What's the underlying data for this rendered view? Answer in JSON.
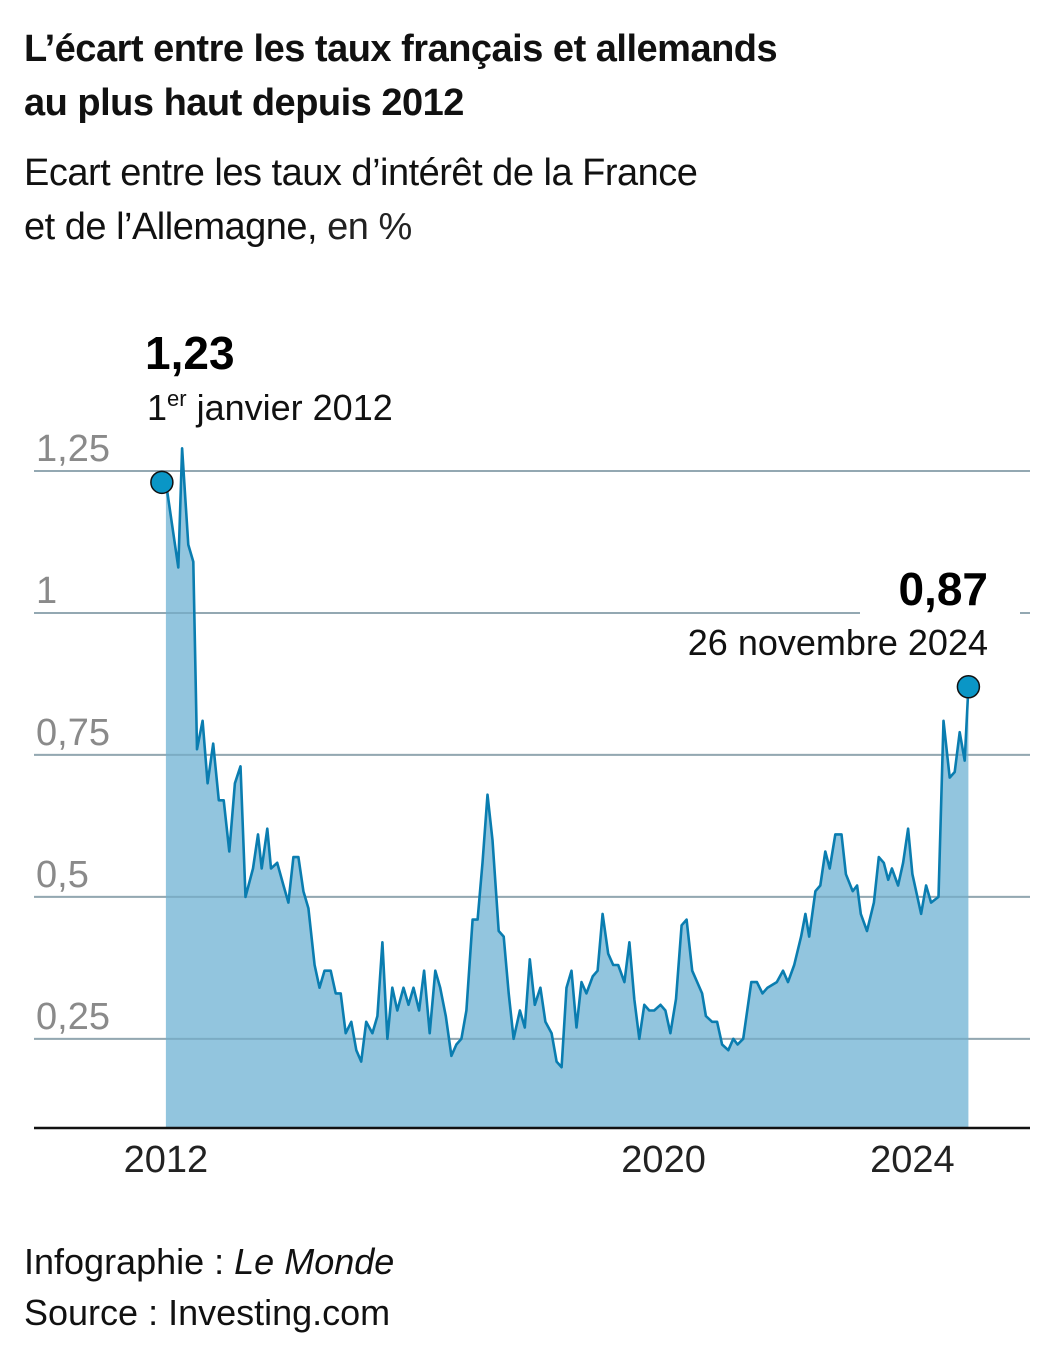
{
  "header": {
    "title_line1": "L’écart entre les taux français et allemands",
    "title_line2": "au plus haut depuis 2012",
    "subtitle_line1": "Ecart entre les taux d’intérêt de la France",
    "subtitle_line2_strong": "et de l’Allemagne,",
    "subtitle_unit": " en %"
  },
  "footer": {
    "credit_label": "Infographie : ",
    "credit_name": "Le Monde",
    "source": "Source : Investing.com"
  },
  "colors": {
    "area": "#92c5de",
    "line": "#0a7db0",
    "marker": "#0a96c6",
    "grid": "#bdbdbd",
    "axis": "#111111"
  },
  "chart_data": {
    "type": "area",
    "title": "L’écart entre les taux français et allemands au plus haut depuis 2012",
    "ylabel": "en %",
    "xlabel": "",
    "xlim": [
      2009.88,
      2025.89
    ],
    "ylim": [
      0.093,
      1.3
    ],
    "grid": true,
    "yticks": [
      {
        "v": 1.25,
        "label": "1,25"
      },
      {
        "v": 1,
        "label": "1"
      },
      {
        "v": 0.75,
        "label": "0,75"
      },
      {
        "v": 0.5,
        "label": "0,5"
      },
      {
        "v": 0.25,
        "label": "0,25"
      }
    ],
    "xticks": [
      {
        "v": 2012,
        "label": "2012"
      },
      {
        "v": 2020,
        "label": "2020"
      },
      {
        "v": 2024,
        "label": "2024"
      }
    ],
    "annotations": [
      {
        "x": 2012.0,
        "y": 1.23,
        "value": "1,23",
        "date_sup_base": "1",
        "date_sup": "er",
        "date": " janvier 2012",
        "align": "left"
      },
      {
        "x": 2024.9,
        "y": 0.87,
        "value": "0,87",
        "date": "26 novembre 2024",
        "align": "right"
      }
    ],
    "x": [
      2012.0,
      2012.2,
      2012.26,
      2012.36,
      2012.44,
      2012.5,
      2012.59,
      2012.67,
      2012.76,
      2012.85,
      2012.93,
      2013.02,
      2013.11,
      2013.2,
      2013.28,
      2013.4,
      2013.48,
      2013.54,
      2013.63,
      2013.69,
      2013.79,
      2013.89,
      2013.97,
      2014.05,
      2014.13,
      2014.21,
      2014.29,
      2014.39,
      2014.47,
      2014.55,
      2014.65,
      2014.73,
      2014.81,
      2014.89,
      2014.98,
      2015.06,
      2015.14,
      2015.22,
      2015.32,
      2015.4,
      2015.48,
      2015.56,
      2015.64,
      2015.72,
      2015.82,
      2015.9,
      2015.98,
      2016.07,
      2016.15,
      2016.24,
      2016.33,
      2016.41,
      2016.5,
      2016.59,
      2016.67,
      2016.75,
      2016.83,
      2016.93,
      2017.01,
      2017.09,
      2017.17,
      2017.25,
      2017.35,
      2017.43,
      2017.51,
      2017.59,
      2017.69,
      2017.77,
      2017.85,
      2017.93,
      2018.02,
      2018.1,
      2018.2,
      2018.28,
      2018.36,
      2018.44,
      2018.52,
      2018.6,
      2018.68,
      2018.76,
      2018.86,
      2018.94,
      2019.02,
      2019.11,
      2019.19,
      2019.27,
      2019.37,
      2019.45,
      2019.53,
      2019.61,
      2019.69,
      2019.77,
      2019.85,
      2019.95,
      2020.03,
      2020.11,
      2020.2,
      2020.29,
      2020.37,
      2020.46,
      2020.54,
      2020.62,
      2020.68,
      2020.78,
      2020.86,
      2020.94,
      2021.04,
      2021.12,
      2021.19,
      2021.28,
      2021.41,
      2021.5,
      2021.59,
      2021.67,
      2021.82,
      2021.92,
      2022.0,
      2022.1,
      2022.21,
      2022.28,
      2022.34,
      2022.44,
      2022.52,
      2022.6,
      2022.67,
      2022.76,
      2022.86,
      2022.93,
      2023.04,
      2023.11,
      2023.17,
      2023.27,
      2023.38,
      2023.46,
      2023.54,
      2023.61,
      2023.67,
      2023.77,
      2023.85,
      2023.93,
      2024.0,
      2024.14,
      2024.22,
      2024.3,
      2024.42,
      2024.5,
      2024.6,
      2024.68,
      2024.76,
      2024.84,
      2024.9
    ],
    "values": [
      1.23,
      1.08,
      1.29,
      1.12,
      1.09,
      0.76,
      0.81,
      0.7,
      0.77,
      0.67,
      0.67,
      0.58,
      0.7,
      0.73,
      0.5,
      0.55,
      0.61,
      0.55,
      0.62,
      0.55,
      0.56,
      0.52,
      0.49,
      0.57,
      0.57,
      0.51,
      0.48,
      0.38,
      0.34,
      0.37,
      0.37,
      0.33,
      0.33,
      0.26,
      0.28,
      0.23,
      0.21,
      0.28,
      0.26,
      0.29,
      0.42,
      0.25,
      0.34,
      0.3,
      0.34,
      0.31,
      0.34,
      0.3,
      0.37,
      0.26,
      0.37,
      0.34,
      0.29,
      0.22,
      0.24,
      0.25,
      0.3,
      0.46,
      0.46,
      0.56,
      0.68,
      0.6,
      0.44,
      0.43,
      0.33,
      0.25,
      0.3,
      0.27,
      0.39,
      0.31,
      0.34,
      0.28,
      0.26,
      0.21,
      0.2,
      0.34,
      0.37,
      0.27,
      0.35,
      0.33,
      0.36,
      0.37,
      0.47,
      0.4,
      0.38,
      0.38,
      0.35,
      0.42,
      0.32,
      0.25,
      0.31,
      0.3,
      0.3,
      0.31,
      0.3,
      0.26,
      0.32,
      0.45,
      0.46,
      0.37,
      0.35,
      0.33,
      0.29,
      0.28,
      0.28,
      0.24,
      0.23,
      0.25,
      0.24,
      0.25,
      0.35,
      0.35,
      0.33,
      0.34,
      0.35,
      0.37,
      0.35,
      0.38,
      0.43,
      0.47,
      0.43,
      0.51,
      0.52,
      0.58,
      0.55,
      0.61,
      0.61,
      0.54,
      0.51,
      0.52,
      0.47,
      0.44,
      0.49,
      0.57,
      0.56,
      0.53,
      0.55,
      0.52,
      0.56,
      0.62,
      0.54,
      0.47,
      0.52,
      0.49,
      0.5,
      0.81,
      0.71,
      0.72,
      0.79,
      0.74,
      0.87
    ]
  }
}
